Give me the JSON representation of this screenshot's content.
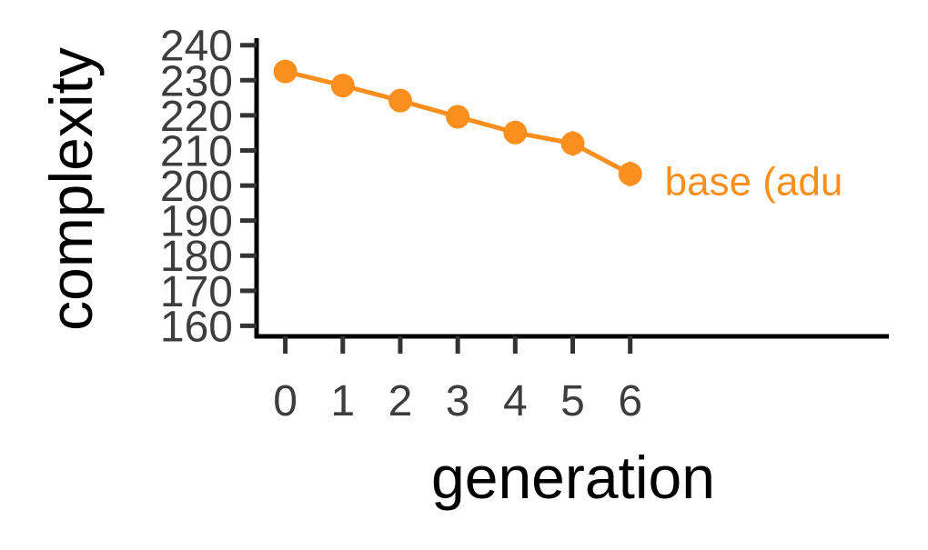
{
  "chart_data": {
    "type": "line",
    "title": "",
    "xlabel": "generation",
    "ylabel": "complexity",
    "x": [
      0,
      1,
      2,
      3,
      4,
      5,
      6
    ],
    "xticks": [
      0,
      1,
      2,
      3,
      4,
      5,
      6
    ],
    "yticks": [
      160,
      170,
      180,
      190,
      200,
      210,
      220,
      230,
      240
    ],
    "xlim": [
      -0.5,
      10.5
    ],
    "ylim": [
      157,
      242
    ],
    "grid": false,
    "legend": "none",
    "series": [
      {
        "name": "base (adult)",
        "label_text": "base (adu",
        "color": "#fa8f1e",
        "values": [
          232.5,
          228.5,
          224.2,
          219.6,
          215.1,
          212.0,
          203.3
        ],
        "error": [
          0.8,
          0.8,
          0.9,
          1.0,
          2.3,
          3.5,
          3.5
        ]
      }
    ]
  }
}
